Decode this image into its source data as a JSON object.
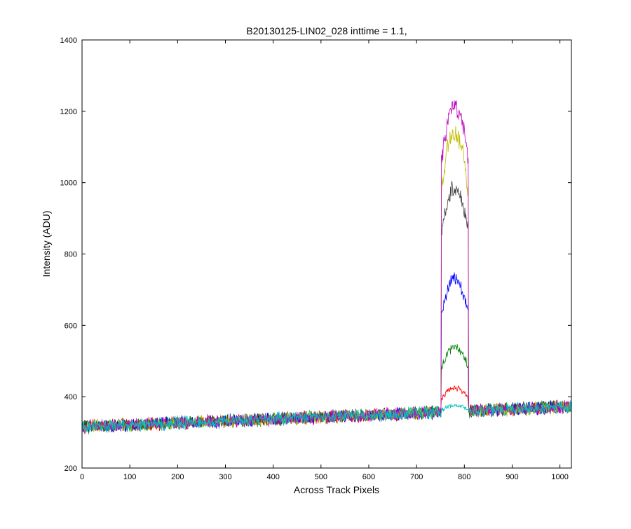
{
  "chart_data": {
    "type": "line",
    "title": "B20130125-LIN02_028 inttime = 1.1,",
    "xlabel": "Across Track Pixels",
    "ylabel": "Intensity (ADU)",
    "xlim": [
      0,
      1024
    ],
    "ylim": [
      200,
      1400
    ],
    "x_ticks": [
      0,
      100,
      200,
      300,
      400,
      500,
      600,
      700,
      800,
      900,
      1000
    ],
    "y_ticks": [
      200,
      400,
      600,
      800,
      1000,
      1200,
      1400
    ],
    "grid": false,
    "legend": "none",
    "baseline": {
      "x": [
        0,
        1024
      ],
      "y": [
        315,
        372
      ],
      "noise_amplitude": 14
    },
    "plateau": {
      "x_start": 752,
      "x_end": 808
    },
    "series": [
      {
        "color": "#ff0000",
        "plateau_edge": 395,
        "plateau_peak": 425
      },
      {
        "color": "#008000",
        "plateau_edge": 480,
        "plateau_peak": 540
      },
      {
        "color": "#0000ff",
        "plateau_edge": 630,
        "plateau_peak": 730
      },
      {
        "color": "#404040",
        "plateau_edge": 860,
        "plateau_peak": 985
      },
      {
        "color": "#bfbf00",
        "plateau_edge": 980,
        "plateau_peak": 1135
      },
      {
        "color": "#bf00bf",
        "plateau_edge": 1060,
        "plateau_peak": 1210
      },
      {
        "color": "#00bfbf",
        "plateau_edge": 362,
        "plateau_peak": 375
      }
    ]
  }
}
